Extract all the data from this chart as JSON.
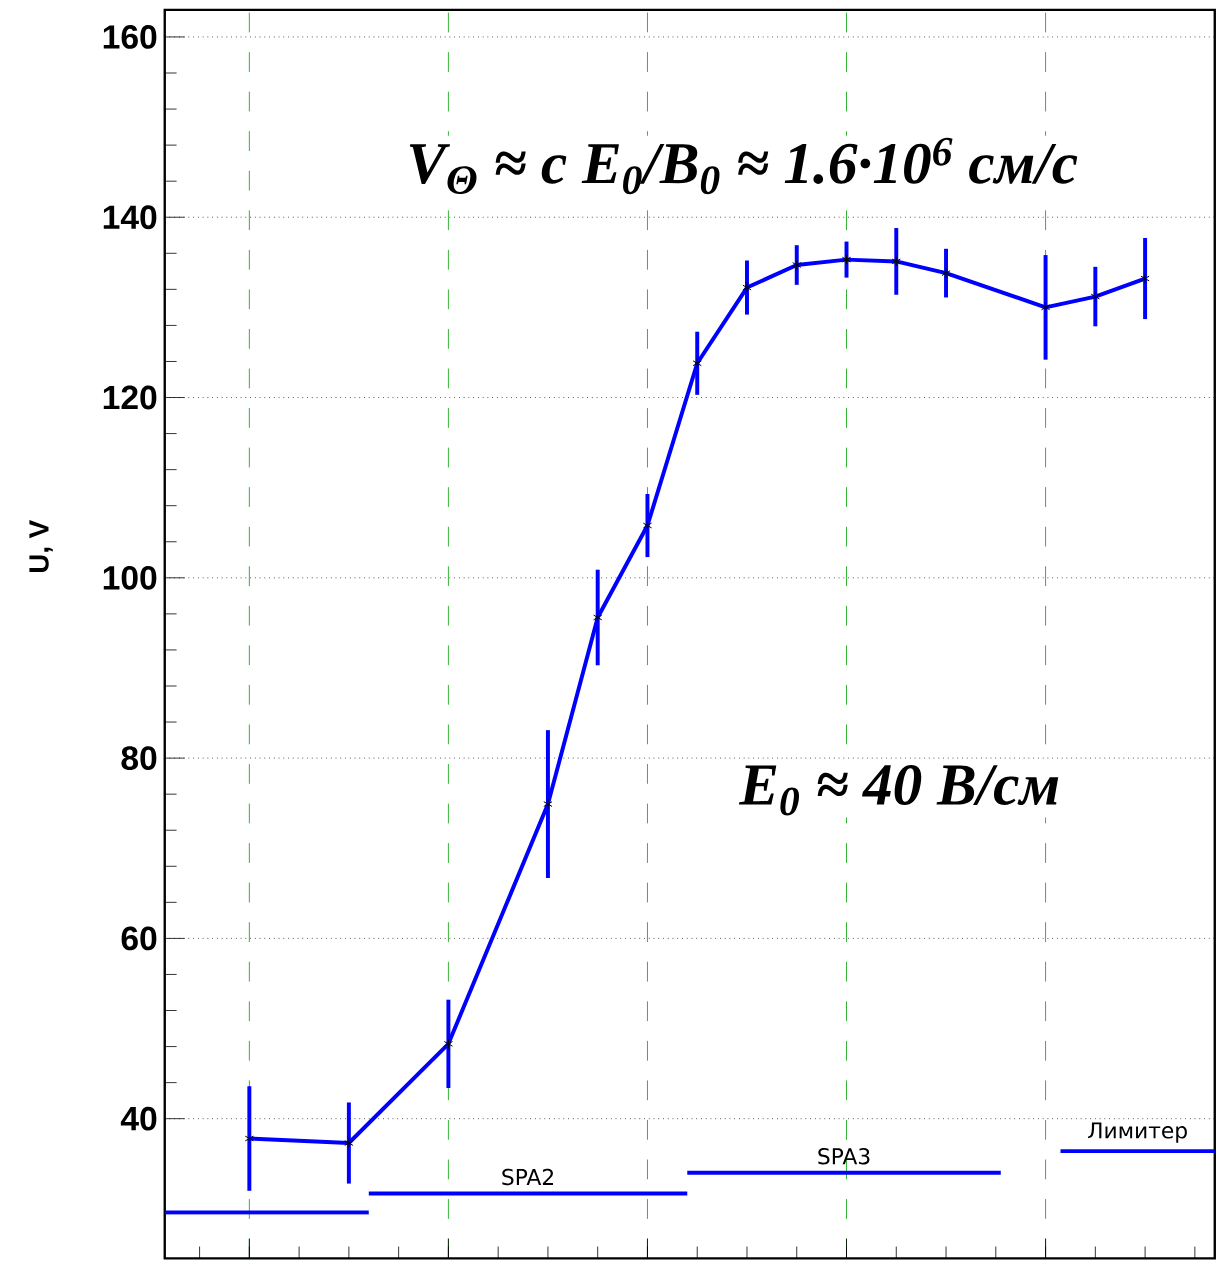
{
  "chart_data": {
    "type": "line",
    "ylabel": "U, V",
    "annotations": [
      "V$_{Θ}$ ≈ c E$_{0}$/B$_{0}$ ≈ 1.6·10$^{6}$ см/с",
      "E$_{0}$ ≈ 40 В/см"
    ],
    "categories": [
      null,
      null,
      null,
      null,
      null,
      null,
      null,
      null,
      null,
      null,
      null,
      null,
      null,
      null,
      null,
      null,
      null,
      null,
      null
    ],
    "series": [
      {
        "color": "#0000ff",
        "marker": "cross",
        "values": [
          37.8,
          null,
          37.3,
          null,
          48.3,
          null,
          74.9,
          95.6,
          105.8,
          123.8,
          132.2,
          134.7,
          135.3,
          135.1,
          133.8,
          null,
          130.0,
          131.2,
          133.2
        ],
        "errors": [
          5.8,
          null,
          4.5,
          null,
          4.9,
          null,
          8.2,
          5.3,
          3.5,
          3.5,
          3,
          2.2,
          2,
          3.7,
          2.7,
          null,
          5.8,
          3.3,
          4.5
        ]
      }
    ],
    "ref_lines": [
      {
        "axis": "y",
        "value": 29.6,
        "color": "#0000ff"
      },
      {
        "axis": "y",
        "value": 31.7,
        "label": "SPA2",
        "color": "#0000ff"
      },
      {
        "axis": "y",
        "value": 34.0,
        "label": "SPA3",
        "color": "#0000ff"
      },
      {
        "axis": "y",
        "value": 36.4,
        "label": "Лимитер",
        "color": "#0000ff"
      }
    ],
    "ylim": [
      24.5,
      163
    ],
    "yticks": [
      40,
      60,
      80,
      100,
      120,
      140,
      160
    ],
    "grid": true,
    "tick_labels": "y"
  }
}
